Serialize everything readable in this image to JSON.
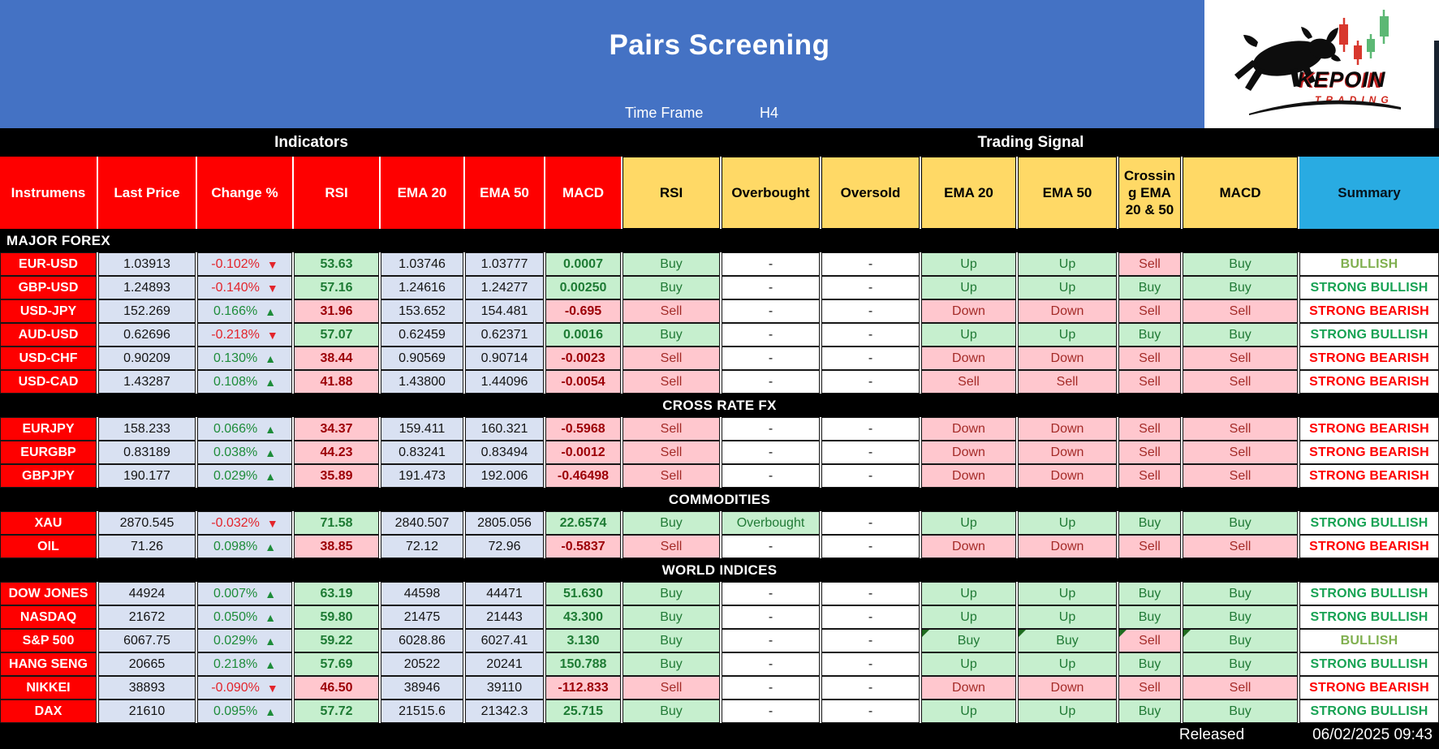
{
  "header": {
    "title": "Pairs Screening",
    "timeframe_label": "Time Frame",
    "timeframe_value": "H4",
    "logo_brand": "KEPOIN",
    "logo_sub": "TRADING"
  },
  "band": {
    "left": "Indicators",
    "right": "Trading Signal"
  },
  "columns": [
    "Instrumens",
    "Last Price",
    "Change %",
    "RSI",
    "EMA 20",
    "EMA 50",
    "MACD",
    "RSI",
    "Overbought",
    "Oversold",
    "EMA 20",
    "EMA 50",
    "Crossing EMA 20 & 50",
    "MACD",
    "Summary"
  ],
  "colors": {
    "banner_blue": "#4472C4",
    "header_red": "#FE0000",
    "header_yellow": "#FFD966",
    "summary_header_blue": "#29ABE2",
    "value_cell_bg": "#D9E1F2",
    "positive_bg": "#C6EFCE",
    "negative_bg": "#FFC7CE",
    "positive_text": "#1E7B34",
    "negative_text": "#9C0006",
    "change_up": "#1E8C3A",
    "change_down": "#E3242B",
    "strong_bullish": "#17A253",
    "strong_bearish": "#FE0000",
    "bullish": "#7FAF4E"
  },
  "sections": [
    {
      "title": "MAJOR FOREX",
      "align": "left",
      "rows": [
        {
          "name": "EUR-USD",
          "last": "1.03913",
          "chg": [
            "-0.102%",
            "down"
          ],
          "rsi": [
            "53.63",
            "up"
          ],
          "e20": "1.03746",
          "e50": "1.03777",
          "macd": [
            "0.0007",
            "up"
          ],
          "sig": [
            [
              "Buy",
              "up"
            ],
            [
              "-",
              "n"
            ],
            [
              "-",
              "n"
            ],
            [
              "Up",
              "up"
            ],
            [
              "Up",
              "up"
            ],
            [
              "Sell",
              "down"
            ],
            [
              "Buy",
              "up"
            ]
          ],
          "sum": [
            "BULLISH",
            "b"
          ]
        },
        {
          "name": "GBP-USD",
          "last": "1.24893",
          "chg": [
            "-0.140%",
            "down"
          ],
          "rsi": [
            "57.16",
            "up"
          ],
          "e20": "1.24616",
          "e50": "1.24277",
          "macd": [
            "0.00250",
            "up"
          ],
          "sig": [
            [
              "Buy",
              "up"
            ],
            [
              "-",
              "n"
            ],
            [
              "-",
              "n"
            ],
            [
              "Up",
              "up"
            ],
            [
              "Up",
              "up"
            ],
            [
              "Buy",
              "up"
            ],
            [
              "Buy",
              "up"
            ]
          ],
          "sum": [
            "STRONG BULLISH",
            "sb"
          ]
        },
        {
          "name": "USD-JPY",
          "last": "152.269",
          "chg": [
            "0.166%",
            "up"
          ],
          "rsi": [
            "31.96",
            "down"
          ],
          "e20": "153.652",
          "e50": "154.481",
          "macd": [
            "-0.695",
            "down"
          ],
          "sig": [
            [
              "Sell",
              "down"
            ],
            [
              "-",
              "n"
            ],
            [
              "-",
              "n"
            ],
            [
              "Down",
              "down"
            ],
            [
              "Down",
              "down"
            ],
            [
              "Sell",
              "down"
            ],
            [
              "Sell",
              "down"
            ]
          ],
          "sum": [
            "STRONG BEARISH",
            "br"
          ]
        },
        {
          "name": "AUD-USD",
          "last": "0.62696",
          "chg": [
            "-0.218%",
            "down"
          ],
          "rsi": [
            "57.07",
            "up"
          ],
          "e20": "0.62459",
          "e50": "0.62371",
          "macd": [
            "0.0016",
            "up"
          ],
          "sig": [
            [
              "Buy",
              "up"
            ],
            [
              "-",
              "n"
            ],
            [
              "-",
              "n"
            ],
            [
              "Up",
              "up"
            ],
            [
              "Up",
              "up"
            ],
            [
              "Buy",
              "up"
            ],
            [
              "Buy",
              "up"
            ]
          ],
          "sum": [
            "STRONG BULLISH",
            "sb"
          ]
        },
        {
          "name": "USD-CHF",
          "last": "0.90209",
          "chg": [
            "0.130%",
            "up"
          ],
          "rsi": [
            "38.44",
            "down"
          ],
          "e20": "0.90569",
          "e50": "0.90714",
          "macd": [
            "-0.0023",
            "down"
          ],
          "sig": [
            [
              "Sell",
              "down"
            ],
            [
              "-",
              "n"
            ],
            [
              "-",
              "n"
            ],
            [
              "Down",
              "down"
            ],
            [
              "Down",
              "down"
            ],
            [
              "Sell",
              "down"
            ],
            [
              "Sell",
              "down"
            ]
          ],
          "sum": [
            "STRONG BEARISH",
            "br"
          ]
        },
        {
          "name": "USD-CAD",
          "last": "1.43287",
          "chg": [
            "0.108%",
            "up"
          ],
          "rsi": [
            "41.88",
            "down"
          ],
          "e20": "1.43800",
          "e50": "1.44096",
          "macd": [
            "-0.0054",
            "down"
          ],
          "sig": [
            [
              "Sell",
              "down"
            ],
            [
              "-",
              "n"
            ],
            [
              "-",
              "n"
            ],
            [
              "Sell",
              "down"
            ],
            [
              "Sell",
              "down"
            ],
            [
              "Sell",
              "down"
            ],
            [
              "Sell",
              "down"
            ]
          ],
          "sum": [
            "STRONG BEARISH",
            "br"
          ]
        }
      ]
    },
    {
      "title": "CROSS RATE FX",
      "align": "center",
      "rows": [
        {
          "name": "EURJPY",
          "last": "158.233",
          "chg": [
            "0.066%",
            "up"
          ],
          "rsi": [
            "34.37",
            "down"
          ],
          "e20": "159.411",
          "e50": "160.321",
          "macd": [
            "-0.5968",
            "down"
          ],
          "sig": [
            [
              "Sell",
              "down"
            ],
            [
              "-",
              "n"
            ],
            [
              "-",
              "n"
            ],
            [
              "Down",
              "down"
            ],
            [
              "Down",
              "down"
            ],
            [
              "Sell",
              "down"
            ],
            [
              "Sell",
              "down"
            ]
          ],
          "sum": [
            "STRONG BEARISH",
            "br"
          ]
        },
        {
          "name": "EURGBP",
          "last": "0.83189",
          "chg": [
            "0.038%",
            "up"
          ],
          "rsi": [
            "44.23",
            "down"
          ],
          "e20": "0.83241",
          "e50": "0.83494",
          "macd": [
            "-0.0012",
            "down"
          ],
          "sig": [
            [
              "Sell",
              "down"
            ],
            [
              "-",
              "n"
            ],
            [
              "-",
              "n"
            ],
            [
              "Down",
              "down"
            ],
            [
              "Down",
              "down"
            ],
            [
              "Sell",
              "down"
            ],
            [
              "Sell",
              "down"
            ]
          ],
          "sum": [
            "STRONG BEARISH",
            "br"
          ]
        },
        {
          "name": "GBPJPY",
          "last": "190.177",
          "chg": [
            "0.029%",
            "up"
          ],
          "rsi": [
            "35.89",
            "down"
          ],
          "e20": "191.473",
          "e50": "192.006",
          "macd": [
            "-0.46498",
            "down"
          ],
          "sig": [
            [
              "Sell",
              "down"
            ],
            [
              "-",
              "n"
            ],
            [
              "-",
              "n"
            ],
            [
              "Down",
              "down"
            ],
            [
              "Down",
              "down"
            ],
            [
              "Sell",
              "down"
            ],
            [
              "Sell",
              "down"
            ]
          ],
          "sum": [
            "STRONG BEARISH",
            "br"
          ]
        }
      ]
    },
    {
      "title": "COMMODITIES",
      "align": "center",
      "rows": [
        {
          "name": "XAU",
          "last": "2870.545",
          "chg": [
            "-0.032%",
            "down"
          ],
          "rsi": [
            "71.58",
            "up"
          ],
          "e20": "2840.507",
          "e50": "2805.056",
          "macd": [
            "22.6574",
            "up"
          ],
          "sig": [
            [
              "Buy",
              "up"
            ],
            [
              "Overbought",
              "up"
            ],
            [
              "-",
              "n"
            ],
            [
              "Up",
              "up"
            ],
            [
              "Up",
              "up"
            ],
            [
              "Buy",
              "up"
            ],
            [
              "Buy",
              "up"
            ]
          ],
          "sum": [
            "STRONG BULLISH",
            "sb"
          ]
        },
        {
          "name": "OIL",
          "last": "71.26",
          "chg": [
            "0.098%",
            "up"
          ],
          "rsi": [
            "38.85",
            "down"
          ],
          "e20": "72.12",
          "e50": "72.96",
          "macd": [
            "-0.5837",
            "down"
          ],
          "sig": [
            [
              "Sell",
              "down"
            ],
            [
              "-",
              "n"
            ],
            [
              "-",
              "n"
            ],
            [
              "Down",
              "down"
            ],
            [
              "Down",
              "down"
            ],
            [
              "Sell",
              "down"
            ],
            [
              "Sell",
              "down"
            ]
          ],
          "sum": [
            "STRONG BEARISH",
            "br"
          ]
        }
      ]
    },
    {
      "title": "WORLD INDICES",
      "align": "center",
      "rows": [
        {
          "name": "DOW JONES",
          "last": "44924",
          "chg": [
            "0.007%",
            "up"
          ],
          "rsi": [
            "63.19",
            "up"
          ],
          "e20": "44598",
          "e50": "44471",
          "macd": [
            "51.630",
            "up"
          ],
          "sig": [
            [
              "Buy",
              "up"
            ],
            [
              "-",
              "n"
            ],
            [
              "-",
              "n"
            ],
            [
              "Up",
              "up"
            ],
            [
              "Up",
              "up"
            ],
            [
              "Buy",
              "up"
            ],
            [
              "Buy",
              "up"
            ]
          ],
          "sum": [
            "STRONG BULLISH",
            "sb"
          ]
        },
        {
          "name": "NASDAQ",
          "last": "21672",
          "chg": [
            "0.050%",
            "up"
          ],
          "rsi": [
            "59.80",
            "up"
          ],
          "e20": "21475",
          "e50": "21443",
          "macd": [
            "43.300",
            "up"
          ],
          "sig": [
            [
              "Buy",
              "up"
            ],
            [
              "-",
              "n"
            ],
            [
              "-",
              "n"
            ],
            [
              "Up",
              "up"
            ],
            [
              "Up",
              "up"
            ],
            [
              "Buy",
              "up"
            ],
            [
              "Buy",
              "up"
            ]
          ],
          "sum": [
            "STRONG BULLISH",
            "sb"
          ]
        },
        {
          "name": "S&P 500",
          "last": "6067.75",
          "chg": [
            "0.029%",
            "up"
          ],
          "rsi": [
            "59.22",
            "up"
          ],
          "e20": "6028.86",
          "e50": "6027.41",
          "macd": [
            "3.130",
            "up"
          ],
          "sig": [
            [
              "Buy",
              "up"
            ],
            [
              "-",
              "n"
            ],
            [
              "-",
              "n"
            ],
            [
              "Buy",
              "up",
              1
            ],
            [
              "Buy",
              "up",
              1
            ],
            [
              "Sell",
              "down",
              1
            ],
            [
              "Buy",
              "up",
              1
            ]
          ],
          "sum": [
            "BULLISH",
            "b"
          ]
        },
        {
          "name": "HANG SENG",
          "last": "20665",
          "chg": [
            "0.218%",
            "up"
          ],
          "rsi": [
            "57.69",
            "up"
          ],
          "e20": "20522",
          "e50": "20241",
          "macd": [
            "150.788",
            "up"
          ],
          "sig": [
            [
              "Buy",
              "up"
            ],
            [
              "-",
              "n"
            ],
            [
              "-",
              "n"
            ],
            [
              "Up",
              "up"
            ],
            [
              "Up",
              "up"
            ],
            [
              "Buy",
              "up"
            ],
            [
              "Buy",
              "up"
            ]
          ],
          "sum": [
            "STRONG BULLISH",
            "sb"
          ]
        },
        {
          "name": "NIKKEI",
          "last": "38893",
          "chg": [
            "-0.090%",
            "down"
          ],
          "rsi": [
            "46.50",
            "down"
          ],
          "e20": "38946",
          "e50": "39110",
          "macd": [
            "-112.833",
            "down"
          ],
          "sig": [
            [
              "Sell",
              "down"
            ],
            [
              "-",
              "n"
            ],
            [
              "-",
              "n"
            ],
            [
              "Down",
              "down"
            ],
            [
              "Down",
              "down"
            ],
            [
              "Sell",
              "down"
            ],
            [
              "Sell",
              "down"
            ]
          ],
          "sum": [
            "STRONG BEARISH",
            "br"
          ]
        },
        {
          "name": "DAX",
          "last": "21610",
          "chg": [
            "0.095%",
            "up"
          ],
          "rsi": [
            "57.72",
            "up"
          ],
          "e20": "21515.6",
          "e50": "21342.3",
          "macd": [
            "25.715",
            "up"
          ],
          "sig": [
            [
              "Buy",
              "up"
            ],
            [
              "-",
              "n"
            ],
            [
              "-",
              "n"
            ],
            [
              "Up",
              "up"
            ],
            [
              "Up",
              "up"
            ],
            [
              "Buy",
              "up"
            ],
            [
              "Buy",
              "up"
            ]
          ],
          "sum": [
            "STRONG BULLISH",
            "sb"
          ]
        }
      ]
    }
  ],
  "footer": {
    "released_label": "Released",
    "timestamp": "06/02/2025 09:43"
  }
}
